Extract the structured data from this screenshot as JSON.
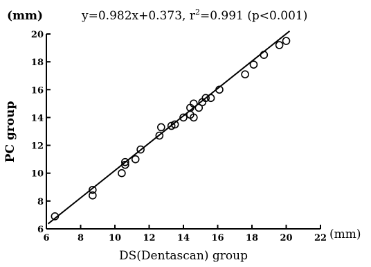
{
  "chart_data": {
    "type": "scatter",
    "title": "",
    "unit_y": "(mm)",
    "unit_x": "(mm)",
    "equation_parts": {
      "base": "y=0.982x+0.373, r",
      "sup": "2",
      "tail": "=0.991 (p<0.001)"
    },
    "xlabel": "DS(Dentascan) group",
    "ylabel": "PC group",
    "xlim": [
      6,
      22
    ],
    "ylim": [
      6,
      20
    ],
    "x_ticks": [
      "6",
      "8",
      "10",
      "12",
      "14",
      "16",
      "18",
      "20",
      "22"
    ],
    "y_ticks": [
      "6",
      "8",
      "10",
      "12",
      "14",
      "16",
      "18",
      "20"
    ],
    "regression": {
      "slope": 0.982,
      "intercept": 0.373,
      "x_range": [
        6.1,
        20.2
      ]
    },
    "points": [
      {
        "x": 6.5,
        "y": 6.9
      },
      {
        "x": 8.7,
        "y": 8.8
      },
      {
        "x": 8.7,
        "y": 8.4
      },
      {
        "x": 10.4,
        "y": 10.0
      },
      {
        "x": 10.6,
        "y": 10.6
      },
      {
        "x": 10.6,
        "y": 10.8
      },
      {
        "x": 11.2,
        "y": 11.0
      },
      {
        "x": 11.5,
        "y": 11.7
      },
      {
        "x": 12.6,
        "y": 12.7
      },
      {
        "x": 12.7,
        "y": 13.3
      },
      {
        "x": 13.3,
        "y": 13.4
      },
      {
        "x": 13.5,
        "y": 13.5
      },
      {
        "x": 14.0,
        "y": 14.0
      },
      {
        "x": 14.4,
        "y": 14.2
      },
      {
        "x": 14.4,
        "y": 14.7
      },
      {
        "x": 14.6,
        "y": 14.0
      },
      {
        "x": 14.6,
        "y": 15.0
      },
      {
        "x": 14.9,
        "y": 14.7
      },
      {
        "x": 15.1,
        "y": 15.1
      },
      {
        "x": 15.3,
        "y": 15.4
      },
      {
        "x": 15.6,
        "y": 15.4
      },
      {
        "x": 16.1,
        "y": 16.0
      },
      {
        "x": 17.6,
        "y": 17.1
      },
      {
        "x": 18.1,
        "y": 17.8
      },
      {
        "x": 18.7,
        "y": 18.5
      },
      {
        "x": 19.6,
        "y": 19.2
      },
      {
        "x": 20.0,
        "y": 19.5
      }
    ],
    "grid": false,
    "legend": "none"
  }
}
